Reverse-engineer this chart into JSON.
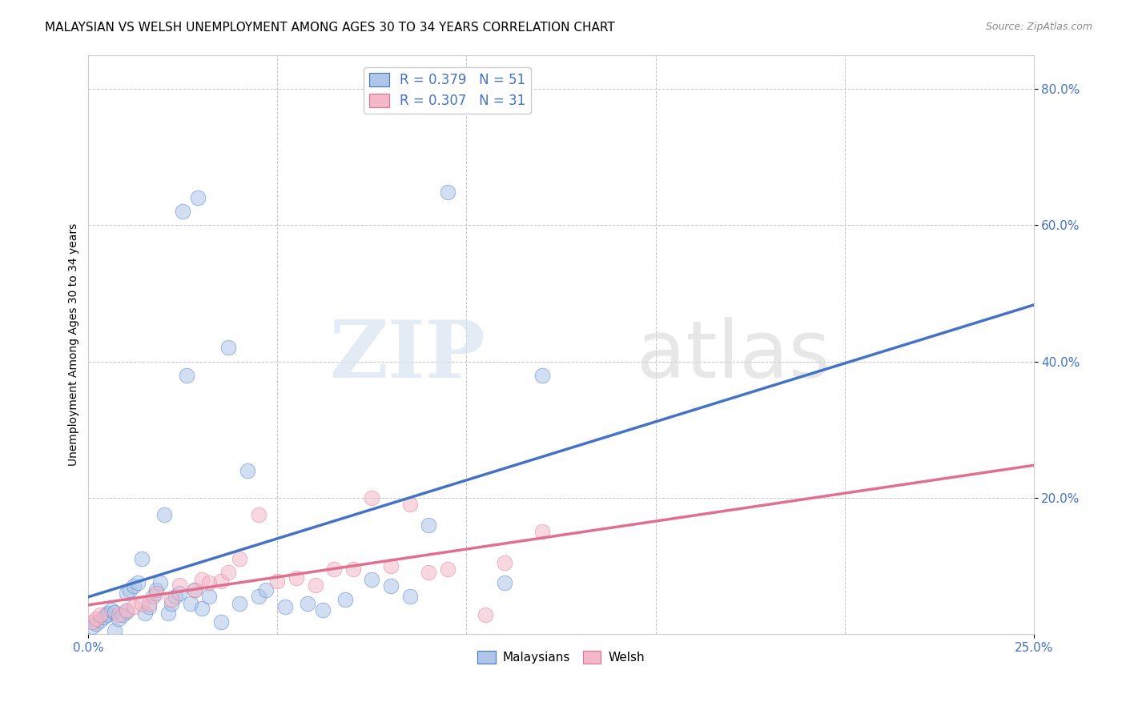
{
  "title": "MALAYSIAN VS WELSH UNEMPLOYMENT AMONG AGES 30 TO 34 YEARS CORRELATION CHART",
  "source": "Source: ZipAtlas.com",
  "ylabel": "Unemployment Among Ages 30 to 34 years",
  "xlim": [
    0.0,
    0.25
  ],
  "ylim": [
    0.0,
    0.85
  ],
  "xticks": [
    0.0,
    0.25
  ],
  "xticklabels": [
    "0.0%",
    "25.0%"
  ],
  "yticks": [
    0.2,
    0.4,
    0.6,
    0.8
  ],
  "yticklabels": [
    "20.0%",
    "40.0%",
    "60.0%",
    "80.0%"
  ],
  "legend_labels": [
    "Malaysians",
    "Welsh"
  ],
  "legend_r": [
    "R = 0.379",
    "R = 0.307"
  ],
  "legend_n": [
    "N = 51",
    "N = 31"
  ],
  "blue_color": "#aec6e8",
  "pink_color": "#f4b8c8",
  "blue_line_color": "#4472c4",
  "pink_line_color": "#e07090",
  "legend_text_color": "#4472c4",
  "background_color": "#ffffff",
  "watermark_zip": "ZIP",
  "watermark_atlas": "atlas",
  "malaysian_x": [
    0.001,
    0.002,
    0.003,
    0.004,
    0.005,
    0.005,
    0.006,
    0.007,
    0.007,
    0.008,
    0.009,
    0.01,
    0.01,
    0.011,
    0.012,
    0.013,
    0.014,
    0.015,
    0.016,
    0.017,
    0.018,
    0.019,
    0.02,
    0.021,
    0.022,
    0.023,
    0.024,
    0.025,
    0.026,
    0.027,
    0.028,
    0.029,
    0.03,
    0.032,
    0.035,
    0.037,
    0.04,
    0.042,
    0.045,
    0.047,
    0.052,
    0.058,
    0.062,
    0.068,
    0.075,
    0.08,
    0.085,
    0.09,
    0.095,
    0.11,
    0.12
  ],
  "malaysian_y": [
    0.01,
    0.015,
    0.02,
    0.025,
    0.03,
    0.028,
    0.035,
    0.032,
    0.005,
    0.022,
    0.028,
    0.033,
    0.06,
    0.065,
    0.07,
    0.075,
    0.11,
    0.03,
    0.04,
    0.055,
    0.065,
    0.075,
    0.175,
    0.03,
    0.045,
    0.055,
    0.06,
    0.62,
    0.38,
    0.045,
    0.065,
    0.64,
    0.038,
    0.055,
    0.018,
    0.42,
    0.045,
    0.24,
    0.055,
    0.065,
    0.04,
    0.045,
    0.035,
    0.05,
    0.08,
    0.07,
    0.055,
    0.16,
    0.648,
    0.075,
    0.38
  ],
  "welsh_x": [
    0.001,
    0.002,
    0.003,
    0.008,
    0.01,
    0.012,
    0.014,
    0.016,
    0.018,
    0.022,
    0.024,
    0.028,
    0.03,
    0.032,
    0.035,
    0.037,
    0.04,
    0.045,
    0.05,
    0.055,
    0.06,
    0.065,
    0.07,
    0.075,
    0.08,
    0.085,
    0.09,
    0.095,
    0.105,
    0.11,
    0.12
  ],
  "welsh_y": [
    0.018,
    0.022,
    0.028,
    0.028,
    0.035,
    0.04,
    0.045,
    0.045,
    0.06,
    0.05,
    0.072,
    0.065,
    0.08,
    0.075,
    0.078,
    0.09,
    0.11,
    0.175,
    0.078,
    0.082,
    0.072,
    0.095,
    0.095,
    0.2,
    0.1,
    0.19,
    0.09,
    0.095,
    0.028,
    0.105,
    0.15
  ],
  "title_fontsize": 11,
  "axis_label_fontsize": 10,
  "tick_fontsize": 11,
  "marker_size": 180,
  "marker_alpha": 0.55
}
